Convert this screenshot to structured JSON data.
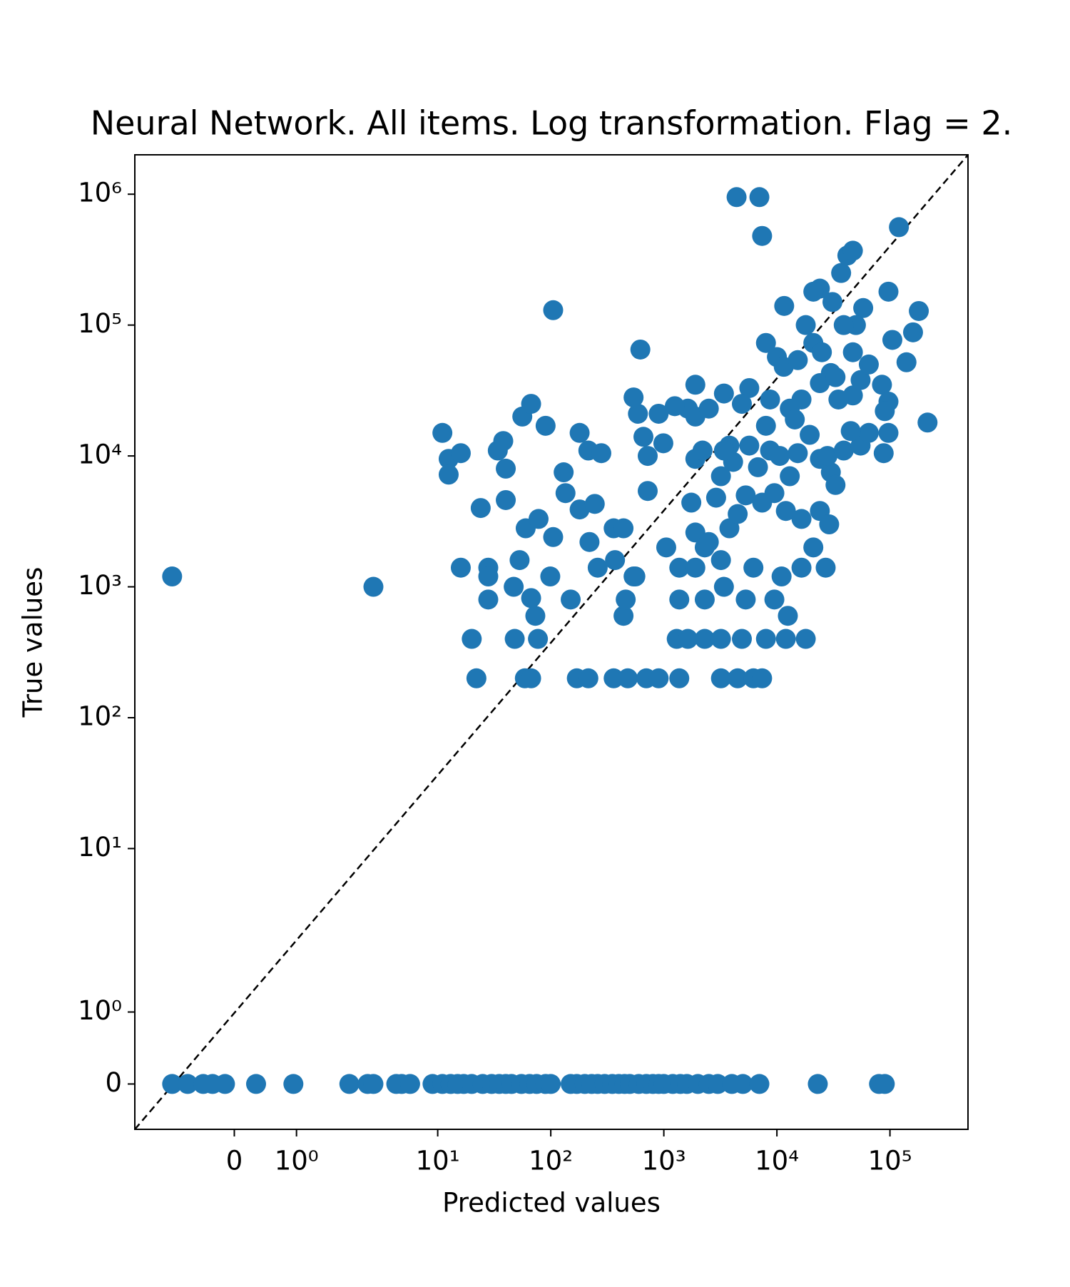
{
  "chart_data": {
    "type": "scatter",
    "title": "Neural Network. All items. Log transformation. Flag = 2.",
    "x_label": "Predicted values",
    "y_label": "True values",
    "xscale": "symlog",
    "yscale": "symlog",
    "linthresh": 2,
    "color": "#1f77b4",
    "xlim": [
      -1.6,
      490000
    ],
    "ylim": [
      -0.63,
      2000000
    ],
    "xticks": [
      0,
      {
        "value": 1,
        "label": "10⁰"
      },
      {
        "value": 10,
        "label": "10¹"
      },
      {
        "value": 100,
        "label": "10²"
      },
      {
        "value": 1000,
        "label": "10³"
      },
      {
        "value": 10000,
        "label": "10⁴"
      },
      {
        "value": 100000,
        "label": "10⁵"
      }
    ],
    "yticks": [
      0,
      {
        "value": 1,
        "label": "10⁰"
      },
      {
        "value": 10,
        "label": "10¹"
      },
      {
        "value": 100,
        "label": "10²"
      },
      {
        "value": 1000,
        "label": "10³"
      },
      {
        "value": 10000,
        "label": "10⁴"
      },
      {
        "value": 100000,
        "label": "10⁵"
      },
      {
        "value": 1000000,
        "label": "10⁶"
      }
    ],
    "x": [
      -1.0,
      -0.75,
      -0.5,
      -0.35,
      -0.15,
      0.35,
      0.95,
      1.85,
      2.4,
      2.7,
      4.3,
      4.8,
      5.7,
      9,
      11,
      13,
      15,
      17,
      20,
      25,
      30,
      35,
      40,
      45,
      55,
      65,
      75,
      90,
      100,
      150,
      170,
      200,
      230,
      260,
      300,
      350,
      400,
      450,
      500,
      600,
      700,
      800,
      900,
      1000,
      1200,
      1400,
      1600,
      2000,
      2500,
      3000,
      4000,
      5000,
      7000,
      23000,
      80000,
      90000,
      -1.0,
      2.7,
      105,
      4400,
      7000,
      7400,
      120000,
      620,
      11,
      12.5,
      16,
      12.5,
      24,
      34,
      38,
      40,
      40,
      56,
      67,
      90,
      130,
      135,
      180,
      215,
      280,
      180,
      245,
      60,
      105,
      220,
      78,
      16,
      28,
      28,
      28,
      53,
      47,
      67,
      73,
      99,
      150,
      20,
      48,
      77,
      22,
      59,
      67,
      170,
      215,
      360,
      480,
      700,
      900,
      1370,
      3200,
      4500,
      6200,
      7400,
      1300,
      1630,
      2300,
      3200,
      4900,
      8000,
      12000,
      18000,
      12500,
      440,
      460,
      540,
      260,
      370,
      360,
      440,
      560,
      1370,
      2300,
      3400,
      5300,
      9500,
      1370,
      1900,
      3200,
      6200,
      11000,
      16500,
      27000,
      1050,
      1900,
      2300,
      2500,
      3800,
      4500,
      5300,
      7400,
      9500,
      12000,
      16500,
      24000,
      29000,
      21000,
      1750,
      2900,
      3200,
      4100,
      3800,
      5700,
      8700,
      6800,
      10600,
      13000,
      15300,
      19500,
      24000,
      30000,
      33000,
      28000,
      39000,
      55000,
      88000,
      97000,
      65000,
      45000,
      47000,
      55000,
      65000,
      85000,
      97000,
      90000,
      140000,
      160000,
      105000,
      180000,
      215000,
      97000,
      58000,
      50000,
      47000,
      39000,
      31000,
      24000,
      21000,
      18000,
      11600,
      8000,
      10000,
      11500,
      15300,
      21000,
      25000,
      30000,
      37000,
      42000,
      47000,
      24000,
      16500,
      13000,
      8700,
      5700,
      4900,
      3400,
      1900,
      1630,
      1900,
      2500,
      1250,
      900,
      590,
      540,
      660,
      720,
      720,
      990,
      1900,
      2200,
      3400,
      8000,
      14400,
      35000,
      33000
    ],
    "values": [
      0,
      0,
      0,
      0,
      0,
      0,
      0,
      0,
      0,
      0,
      0,
      0,
      0,
      0,
      0,
      0,
      0,
      0,
      0,
      0,
      0,
      0,
      0,
      0,
      0,
      0,
      0,
      0,
      0,
      0,
      0,
      0,
      0,
      0,
      0,
      0,
      0,
      0,
      0,
      0,
      0,
      0,
      0,
      0,
      0,
      0,
      0,
      0,
      0,
      0,
      0,
      0,
      0,
      0,
      0,
      0,
      1200,
      1000,
      130000,
      950000,
      950000,
      480000,
      560000,
      65000,
      15000,
      9500,
      10500,
      7200,
      4000,
      11000,
      13000,
      8000,
      4600,
      20000,
      25000,
      17000,
      7500,
      5200,
      15000,
      11000,
      10500,
      3900,
      4300,
      2800,
      2400,
      2200,
      3300,
      1400,
      1400,
      1200,
      800,
      1600,
      1000,
      820,
      600,
      1200,
      800,
      400,
      400,
      400,
      200,
      200,
      200,
      200,
      200,
      200,
      200,
      200,
      200,
      200,
      200,
      200,
      200,
      200,
      400,
      400,
      400,
      400,
      400,
      400,
      400,
      400,
      600,
      600,
      800,
      1200,
      1400,
      1600,
      2800,
      2800,
      1200,
      800,
      800,
      1000,
      800,
      800,
      1400,
      1400,
      1600,
      1400,
      1200,
      1400,
      1400,
      2000,
      2600,
      2000,
      2200,
      2800,
      3600,
      5000,
      4400,
      5200,
      3800,
      3300,
      3800,
      3000,
      2000,
      4400,
      4800,
      7000,
      9000,
      12000,
      12000,
      11000,
      8200,
      10000,
      7000,
      10500,
      14500,
      9500,
      7500,
      6000,
      10000,
      11000,
      12000,
      10500,
      15000,
      15000,
      15500,
      29000,
      38000,
      50000,
      35000,
      26000,
      22000,
      52000,
      88000,
      77000,
      128000,
      18000,
      180000,
      135000,
      100000,
      62000,
      100000,
      150000,
      190000,
      180000,
      100000,
      140000,
      73000,
      57000,
      48000,
      54000,
      73000,
      62000,
      43000,
      250000,
      340000,
      370000,
      36000,
      27000,
      23000,
      27000,
      33000,
      25000,
      30000,
      35000,
      23000,
      20000,
      23000,
      24000,
      21000,
      21000,
      28000,
      14000,
      10000,
      5400,
      12500,
      9500,
      11000,
      11000,
      17000,
      19000,
      27000,
      40000
    ]
  }
}
